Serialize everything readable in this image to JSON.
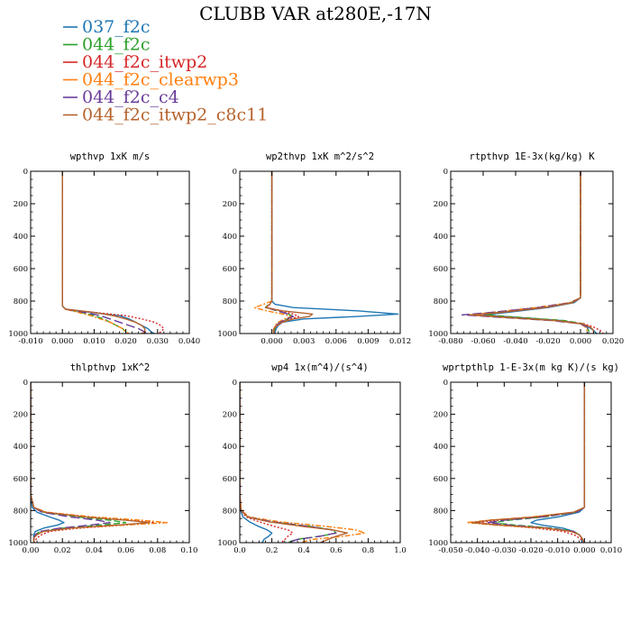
{
  "figure": {
    "title": "CLUBB VAR at280E,-17N"
  },
  "legend": [
    {
      "name": "037_f2c",
      "color": "#1f77b4"
    },
    {
      "name": "044_f2c",
      "color": "#2ca02c"
    },
    {
      "name": "044_f2c_itwp2",
      "color": "#d62728"
    },
    {
      "name": "044_f2c_clearwp3",
      "color": "#ff7f0e"
    },
    {
      "name": "044_f2c_c4",
      "color": "#6a3d9a"
    },
    {
      "name": "044_f2c_itwp2_c8c11",
      "color": "#b5632e"
    }
  ],
  "chart_data": [
    {
      "type": "line",
      "title": "wpthvp  1xK m/s",
      "xlim": [
        -0.01,
        0.04
      ],
      "ylim": [
        1000,
        0
      ],
      "xticks": [
        -0.01,
        0.0,
        0.01,
        0.02,
        0.03,
        0.04
      ],
      "xtick_labels": [
        "-0.010",
        "0.000",
        "0.010",
        "0.020",
        "0.030",
        "0.040"
      ],
      "yticks": [
        0,
        200,
        400,
        600,
        800,
        1000
      ],
      "ytick_labels": [
        "0",
        "200",
        "400",
        "600",
        "800",
        "1000"
      ],
      "y": [
        0,
        600,
        800,
        830,
        850,
        870,
        890,
        910,
        930,
        950,
        970,
        990,
        1000
      ],
      "series": [
        {
          "name": "037_f2c",
          "dash": "",
          "values": [
            0.0,
            0.0,
            0.0,
            0.0,
            0.001,
            0.009,
            0.018,
            0.021,
            0.023,
            0.025,
            0.027,
            0.028,
            0.029
          ]
        },
        {
          "name": "044_f2c",
          "dash": "7 3",
          "values": [
            0.0,
            0.0,
            0.0,
            0.0,
            0.001,
            0.006,
            0.01,
            0.013,
            0.015,
            0.017,
            0.019,
            0.02,
            0.02
          ]
        },
        {
          "name": "044_f2c_itwp2",
          "dash": "2 2",
          "values": [
            0.0,
            0.0,
            0.0,
            0.0,
            0.001,
            0.01,
            0.02,
            0.025,
            0.029,
            0.031,
            0.032,
            0.031,
            0.03
          ]
        },
        {
          "name": "044_f2c_clearwp3",
          "dash": "6 2 2 2",
          "values": [
            0.0,
            0.0,
            0.0,
            0.0,
            0.001,
            0.005,
            0.009,
            0.012,
            0.015,
            0.017,
            0.019,
            0.02,
            0.021
          ]
        },
        {
          "name": "044_f2c_c4",
          "dash": "10 4",
          "values": [
            0.0,
            0.0,
            0.0,
            0.0,
            0.001,
            0.007,
            0.012,
            0.015,
            0.018,
            0.021,
            0.024,
            0.026,
            0.027
          ]
        },
        {
          "name": "044_f2c_itwp2_c8c11",
          "dash": "",
          "values": [
            0.0,
            0.0,
            0.0,
            0.0,
            0.001,
            0.01,
            0.016,
            0.02,
            0.023,
            0.025,
            0.026,
            0.026,
            0.025
          ]
        }
      ]
    },
    {
      "type": "line",
      "title": "wp2thvp  1xK m^2/s^2",
      "xlim": [
        -0.003,
        0.012
      ],
      "ylim": [
        1000,
        0
      ],
      "xticks": [
        0.0,
        0.003,
        0.006,
        0.009,
        0.012
      ],
      "xtick_labels": [
        "0.000",
        "0.003",
        "0.006",
        "0.009",
        "0.012"
      ],
      "yticks": [
        0,
        200,
        400,
        600,
        800,
        1000
      ],
      "ytick_labels": [
        "0",
        "200",
        "400",
        "600",
        "800",
        "1000"
      ],
      "y": [
        0,
        600,
        800,
        820,
        840,
        860,
        880,
        895,
        910,
        930,
        950,
        970,
        990,
        1000
      ],
      "series": [
        {
          "name": "037_f2c",
          "dash": "",
          "values": [
            0.0,
            0.0,
            0.0,
            0.0003,
            0.002,
            0.008,
            0.0118,
            0.008,
            0.003,
            0.001,
            0.0006,
            0.0004,
            0.0003,
            0.0003
          ]
        },
        {
          "name": "044_f2c",
          "dash": "7 3",
          "values": [
            0.0,
            0.0,
            0.0,
            -0.0003,
            -0.0006,
            0.0005,
            0.0015,
            0.002,
            0.0015,
            0.0008,
            0.0004,
            0.0003,
            0.0002,
            0.0002
          ]
        },
        {
          "name": "044_f2c_itwp2",
          "dash": "2 2",
          "values": [
            0.0,
            0.0,
            0.0,
            -0.0002,
            -0.0004,
            0.0008,
            0.002,
            0.0025,
            0.0018,
            0.0008,
            0.0004,
            0.0002,
            0.0002,
            0.0002
          ]
        },
        {
          "name": "044_f2c_clearwp3",
          "dash": "6 2 2 2",
          "values": [
            0.0,
            0.0,
            0.0,
            -0.0008,
            -0.0016,
            -0.0005,
            0.001,
            0.0018,
            0.0012,
            0.0006,
            0.0003,
            0.0002,
            0.0001,
            0.0001
          ]
        },
        {
          "name": "044_f2c_c4",
          "dash": "10 4",
          "values": [
            0.0,
            0.0,
            0.0,
            -0.0002,
            -0.0005,
            0.0005,
            0.0015,
            0.002,
            0.0014,
            0.0008,
            0.0004,
            0.0002,
            0.0002,
            0.0002
          ]
        },
        {
          "name": "044_f2c_itwp2_c8c11",
          "dash": "",
          "values": [
            0.0,
            0.0,
            0.0,
            -0.0002,
            -0.0006,
            0.001,
            0.0038,
            0.0035,
            0.002,
            0.001,
            0.0005,
            0.0002,
            0.0002,
            0.0002
          ]
        }
      ]
    },
    {
      "type": "line",
      "title": "rtpthvp  1E-3x(kg/kg) K",
      "xlim": [
        -0.08,
        0.02
      ],
      "ylim": [
        1000,
        0
      ],
      "xticks": [
        -0.08,
        -0.06,
        -0.04,
        -0.02,
        0.0,
        0.02
      ],
      "xtick_labels": [
        "-0.080",
        "-0.060",
        "-0.040",
        "-0.020",
        "0.000",
        "0.020"
      ],
      "yticks": [
        0,
        200,
        400,
        600,
        800,
        1000
      ],
      "ytick_labels": [
        "0",
        "200",
        "400",
        "600",
        "800",
        "1000"
      ],
      "y": [
        0,
        600,
        780,
        810,
        840,
        870,
        885,
        900,
        920,
        940,
        960,
        980,
        1000
      ],
      "series": [
        {
          "name": "037_f2c",
          "dash": "",
          "values": [
            0.0,
            0.0,
            0.0,
            -0.004,
            -0.02,
            -0.045,
            -0.06,
            -0.04,
            -0.012,
            0.0,
            0.005,
            0.008,
            0.01
          ]
        },
        {
          "name": "044_f2c",
          "dash": "7 3",
          "values": [
            0.0,
            0.0,
            0.0,
            -0.006,
            -0.025,
            -0.05,
            -0.058,
            -0.038,
            -0.01,
            0.002,
            0.004,
            0.005,
            0.005
          ]
        },
        {
          "name": "044_f2c_itwp2",
          "dash": "2 2",
          "values": [
            0.0,
            0.0,
            0.0,
            -0.005,
            -0.022,
            -0.048,
            -0.065,
            -0.045,
            -0.015,
            0.002,
            0.008,
            0.012,
            0.014
          ]
        },
        {
          "name": "044_f2c_clearwp3",
          "dash": "6 2 2 2",
          "values": [
            0.0,
            0.0,
            0.0,
            -0.007,
            -0.028,
            -0.055,
            -0.07,
            -0.048,
            -0.015,
            0.0,
            0.003,
            0.004,
            0.004
          ]
        },
        {
          "name": "044_f2c_c4",
          "dash": "10 4",
          "values": [
            0.0,
            0.0,
            0.0,
            -0.006,
            -0.026,
            -0.055,
            -0.073,
            -0.05,
            -0.018,
            0.0,
            0.004,
            0.005,
            0.005
          ]
        },
        {
          "name": "044_f2c_itwp2_c8c11",
          "dash": "",
          "values": [
            0.0,
            0.0,
            0.0,
            -0.005,
            -0.022,
            -0.05,
            -0.068,
            -0.047,
            -0.016,
            0.001,
            0.006,
            0.008,
            0.008
          ]
        }
      ]
    },
    {
      "type": "line",
      "title": "thlpthvp  1xK^2",
      "xlim": [
        0.0,
        0.1
      ],
      "ylim": [
        1000,
        0
      ],
      "xticks": [
        0.0,
        0.02,
        0.04,
        0.06,
        0.08,
        0.1
      ],
      "xtick_labels": [
        "0.00",
        "0.02",
        "0.04",
        "0.06",
        "0.08",
        "0.10"
      ],
      "yticks": [
        0,
        200,
        400,
        600,
        800,
        1000
      ],
      "ytick_labels": [
        "0",
        "200",
        "400",
        "600",
        "800",
        "1000"
      ],
      "y": [
        0,
        700,
        780,
        810,
        840,
        860,
        875,
        890,
        910,
        930,
        950,
        970,
        1000
      ],
      "series": [
        {
          "name": "037_f2c",
          "dash": "",
          "values": [
            0.0,
            0.0,
            0.001,
            0.004,
            0.012,
            0.018,
            0.021,
            0.017,
            0.008,
            0.003,
            0.002,
            0.002,
            0.002
          ]
        },
        {
          "name": "044_f2c",
          "dash": "7 3",
          "values": [
            0.0,
            0.0,
            0.002,
            0.008,
            0.03,
            0.05,
            0.06,
            0.045,
            0.02,
            0.006,
            0.003,
            0.002,
            0.002
          ]
        },
        {
          "name": "044_f2c_itwp2",
          "dash": "2 2",
          "values": [
            0.0,
            0.0,
            0.002,
            0.009,
            0.035,
            0.062,
            0.078,
            0.06,
            0.03,
            0.012,
            0.007,
            0.004,
            0.002
          ]
        },
        {
          "name": "044_f2c_clearwp3",
          "dash": "6 2 2 2",
          "values": [
            0.0,
            0.0,
            0.002,
            0.01,
            0.04,
            0.07,
            0.086,
            0.06,
            0.025,
            0.008,
            0.004,
            0.002,
            0.002
          ]
        },
        {
          "name": "044_f2c_c4",
          "dash": "10 4",
          "values": [
            0.0,
            0.0,
            0.002,
            0.007,
            0.025,
            0.042,
            0.05,
            0.038,
            0.018,
            0.006,
            0.003,
            0.002,
            0.002
          ]
        },
        {
          "name": "044_f2c_itwp2_c8c11",
          "dash": "",
          "values": [
            0.0,
            0.0,
            0.002,
            0.009,
            0.035,
            0.06,
            0.075,
            0.055,
            0.025,
            0.008,
            0.004,
            0.002,
            0.002
          ]
        }
      ]
    },
    {
      "type": "line",
      "title": "wp4  1x(m^4)/(s^4)",
      "xlim": [
        0.0,
        1.0
      ],
      "ylim": [
        1000,
        0
      ],
      "xticks": [
        0.0,
        0.2,
        0.4,
        0.6,
        0.8,
        1.0
      ],
      "xtick_labels": [
        "0.0",
        "0.2",
        "0.4",
        "0.6",
        "0.8",
        "1.0"
      ],
      "yticks": [
        0,
        200,
        400,
        600,
        800,
        1000
      ],
      "ytick_labels": [
        "0",
        "200",
        "400",
        "600",
        "800",
        "1000"
      ],
      "y": [
        0,
        700,
        800,
        840,
        870,
        900,
        920,
        940,
        960,
        980,
        1000
      ],
      "series": [
        {
          "name": "037_f2c",
          "dash": "",
          "values": [
            0.0,
            0.0,
            0.005,
            0.02,
            0.06,
            0.12,
            0.17,
            0.2,
            0.18,
            0.15,
            0.14
          ]
        },
        {
          "name": "044_f2c",
          "dash": "7 3",
          "values": [
            0.0,
            0.0,
            0.008,
            0.05,
            0.2,
            0.45,
            0.58,
            0.6,
            0.5,
            0.35,
            0.3
          ]
        },
        {
          "name": "044_f2c_itwp2",
          "dash": "2 2",
          "values": [
            0.0,
            0.0,
            0.008,
            0.04,
            0.12,
            0.22,
            0.3,
            0.33,
            0.3,
            0.28,
            0.26
          ]
        },
        {
          "name": "044_f2c_clearwp3",
          "dash": "6 2 2 2",
          "values": [
            0.0,
            0.0,
            0.01,
            0.06,
            0.25,
            0.55,
            0.72,
            0.78,
            0.65,
            0.45,
            0.38
          ]
        },
        {
          "name": "044_f2c_c4",
          "dash": "10 4",
          "values": [
            0.0,
            0.0,
            0.008,
            0.05,
            0.2,
            0.44,
            0.57,
            0.6,
            0.5,
            0.36,
            0.3
          ]
        },
        {
          "name": "044_f2c_itwp2_c8c11",
          "dash": "",
          "values": [
            0.0,
            0.0,
            0.008,
            0.05,
            0.18,
            0.4,
            0.58,
            0.67,
            0.6,
            0.55,
            0.5
          ]
        }
      ]
    },
    {
      "type": "line",
      "title": "wprtpthlp  1-E-3x(m kg K)/(s kg)",
      "xlim": [
        -0.05,
        0.01
      ],
      "ylim": [
        1000,
        0
      ],
      "xticks": [
        -0.05,
        -0.04,
        -0.03,
        -0.02,
        -0.01,
        0.0,
        0.01
      ],
      "xtick_labels": [
        "-0.050",
        "-0.040",
        "-0.030",
        "-0.020",
        "-0.010",
        "0.000",
        "0.010"
      ],
      "yticks": [
        0,
        200,
        400,
        600,
        800,
        1000
      ],
      "ytick_labels": [
        "0",
        "200",
        "400",
        "600",
        "800",
        "1000"
      ],
      "y": [
        0,
        700,
        780,
        810,
        840,
        860,
        875,
        890,
        910,
        930,
        950,
        970,
        1000
      ],
      "series": [
        {
          "name": "037_f2c",
          "dash": "",
          "values": [
            0.0,
            0.0,
            0.0,
            -0.002,
            -0.01,
            -0.018,
            -0.02,
            -0.016,
            -0.008,
            -0.004,
            -0.002,
            -0.001,
            -0.001
          ]
        },
        {
          "name": "044_f2c",
          "dash": "7 3",
          "values": [
            0.0,
            0.0,
            0.0,
            -0.003,
            -0.015,
            -0.028,
            -0.034,
            -0.026,
            -0.012,
            -0.004,
            -0.002,
            -0.001,
            0.0
          ]
        },
        {
          "name": "044_f2c_itwp2",
          "dash": "2 2",
          "values": [
            0.0,
            0.0,
            0.0,
            -0.003,
            -0.017,
            -0.032,
            -0.04,
            -0.032,
            -0.018,
            -0.008,
            -0.004,
            -0.002,
            0.0
          ]
        },
        {
          "name": "044_f2c_clearwp3",
          "dash": "6 2 2 2",
          "values": [
            0.0,
            0.0,
            0.0,
            -0.004,
            -0.02,
            -0.036,
            -0.044,
            -0.034,
            -0.015,
            -0.005,
            -0.002,
            -0.001,
            0.0
          ]
        },
        {
          "name": "044_f2c_c4",
          "dash": "10 4",
          "values": [
            0.0,
            0.0,
            0.0,
            -0.003,
            -0.016,
            -0.03,
            -0.036,
            -0.028,
            -0.013,
            -0.004,
            -0.002,
            -0.001,
            0.0
          ]
        },
        {
          "name": "044_f2c_itwp2_c8c11",
          "dash": "",
          "values": [
            0.0,
            0.0,
            0.0,
            -0.004,
            -0.019,
            -0.035,
            -0.042,
            -0.032,
            -0.014,
            -0.005,
            -0.002,
            -0.001,
            0.0
          ]
        }
      ]
    }
  ]
}
